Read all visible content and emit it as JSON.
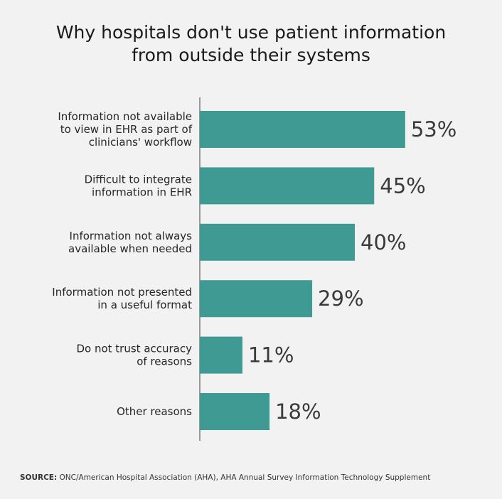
{
  "chart_data": {
    "type": "bar",
    "orientation": "horizontal",
    "title": "Why hospitals don't use patient information from outside their systems",
    "title_lines": [
      "Why hospitals don't use patient information",
      "from outside their systems"
    ],
    "categories": [
      "Information not available to view in EHR as part of clinicians' workflow",
      "Difficult to integrate information in EHR",
      "Information not always available when needed",
      "Information not presented in a useful format",
      "Do not trust accuracy of reasons",
      "Other reasons"
    ],
    "category_lines": [
      [
        "Information not available",
        "to view in EHR as part of",
        "clinicians' workflow"
      ],
      [
        "Difficult to integrate",
        "information in EHR"
      ],
      [
        "Information not always",
        "available when needed"
      ],
      [
        "Information not presented",
        "in a useful format"
      ],
      [
        "Do not trust accuracy",
        "of reasons"
      ],
      [
        "Other reasons"
      ]
    ],
    "values": [
      53,
      45,
      40,
      29,
      11,
      18
    ],
    "value_labels": [
      "53%",
      "45%",
      "40%",
      "29%",
      "11%",
      "18%"
    ],
    "unit": "%",
    "xlim": [
      0,
      100
    ],
    "grid": false,
    "bar_color": "#409a94"
  },
  "source": {
    "label": "SOURCE:",
    "text": "ONC/American Hospital Association (AHA), AHA Annual Survey Information Technology Supplement"
  }
}
